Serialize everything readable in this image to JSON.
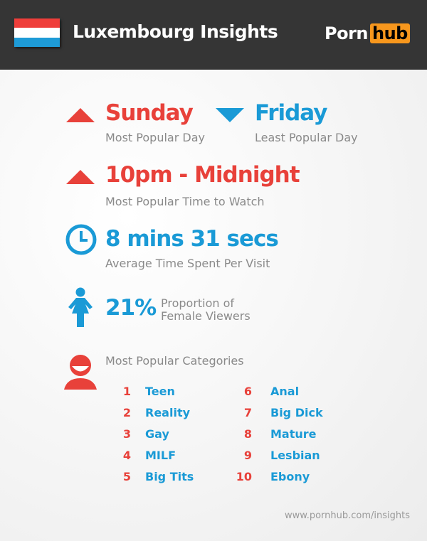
{
  "header": {
    "title": "Luxembourg Insights",
    "logo": {
      "left": "Porn",
      "right": "hub"
    },
    "flag_colors": [
      "#ef3e3a",
      "#ffffff",
      "#1e9bd7"
    ]
  },
  "stats": {
    "most_popular_day": {
      "value": "Sunday",
      "label": "Most Popular Day",
      "icon": "triangle-up-icon"
    },
    "least_popular_day": {
      "value": "Friday",
      "label": "Least Popular Day",
      "icon": "triangle-down-icon"
    },
    "popular_time": {
      "value": "10pm - Midnight",
      "label": "Most Popular Time to Watch",
      "icon": "triangle-up-icon"
    },
    "avg_time": {
      "value": "8 mins 31 secs",
      "label": "Average Time Spent Per Visit",
      "icon": "clock-icon"
    },
    "female": {
      "value": "21%",
      "label_line1": "Proportion of",
      "label_line2": "Female Viewers",
      "icon": "female-icon"
    }
  },
  "categories": {
    "title": "Most Popular Categories",
    "icon": "person-icon",
    "items": [
      {
        "rank": "1",
        "name": "Teen"
      },
      {
        "rank": "2",
        "name": "Reality"
      },
      {
        "rank": "3",
        "name": "Gay"
      },
      {
        "rank": "4",
        "name": "MILF"
      },
      {
        "rank": "5",
        "name": "Big Tits"
      },
      {
        "rank": "6",
        "name": "Anal"
      },
      {
        "rank": "7",
        "name": "Big Dick"
      },
      {
        "rank": "8",
        "name": "Mature"
      },
      {
        "rank": "9",
        "name": "Lesbian"
      },
      {
        "rank": "10",
        "name": "Ebony"
      }
    ]
  },
  "footer": "www.pornhub.com/insights",
  "colors": {
    "red": "#e8413a",
    "blue": "#1a9ad6",
    "gray": "#8a8a8a",
    "header": "#353535",
    "logo_orange": "#f7971d"
  }
}
